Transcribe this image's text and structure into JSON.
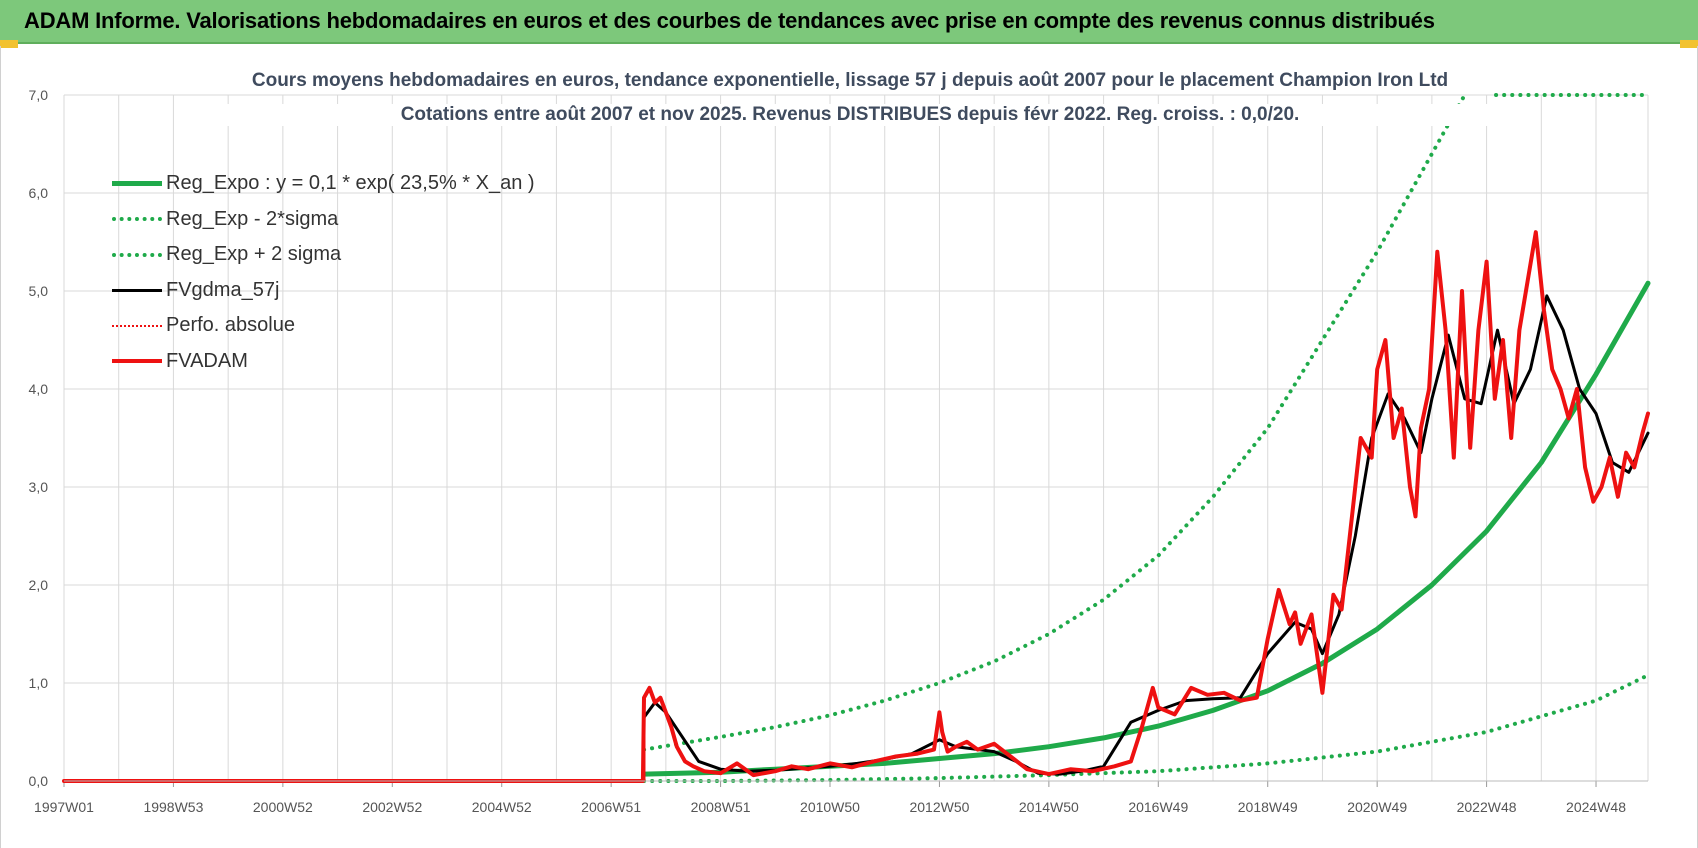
{
  "header": {
    "title": "ADAM Informe. Valorisations hebdomadaires en euros et des courbes de tendances avec prise en compte des revenus connus distribués"
  },
  "colors": {
    "green": "#1faa4a",
    "black": "#000000",
    "red": "#ee1111",
    "grid": "#d9d9d9"
  },
  "chart_data": {
    "type": "line",
    "title_line1": "Cours moyens hebdomadaires en euros, tendance exponentielle, lissage 57 j depuis août 2007 pour le placement Champion Iron Ltd",
    "title_line2": "Cotations entre août 2007 et nov 2025. Revenus DISTRIBUES depuis févr 2022. Reg. croiss. : 0,0/20.",
    "x_range": [
      1997.0,
      2025.95
    ],
    "ylim": [
      0,
      7
    ],
    "y_ticks": [
      "0,0",
      "1,0",
      "2,0",
      "3,0",
      "4,0",
      "5,0",
      "6,0",
      "7,0"
    ],
    "x_ticks": [
      {
        "label": "1997W01",
        "year": 1997.0
      },
      {
        "label": "1998W53",
        "year": 1999.0
      },
      {
        "label": "2000W52",
        "year": 2001.0
      },
      {
        "label": "2002W52",
        "year": 2003.0
      },
      {
        "label": "2004W52",
        "year": 2005.0
      },
      {
        "label": "2006W51",
        "year": 2007.0
      },
      {
        "label": "2008W51",
        "year": 2009.0
      },
      {
        "label": "2010W50",
        "year": 2011.0
      },
      {
        "label": "2012W50",
        "year": 2013.0
      },
      {
        "label": "2014W50",
        "year": 2015.0
      },
      {
        "label": "2016W49",
        "year": 2017.0
      },
      {
        "label": "2018W49",
        "year": 2019.0
      },
      {
        "label": "2020W49",
        "year": 2021.0
      },
      {
        "label": "2022W48",
        "year": 2023.0
      },
      {
        "label": "2024W48",
        "year": 2025.0
      }
    ],
    "legend": [
      {
        "label": "Reg_Expo : y = 0,1 * exp( 23,5% *  X_an )",
        "color": "#1faa4a",
        "style": "solid",
        "width": 5
      },
      {
        "label": "Reg_Exp - 2*sigma",
        "color": "#1faa4a",
        "style": "dotted",
        "width": 4
      },
      {
        "label": "Reg_Exp + 2 sigma",
        "color": "#1faa4a",
        "style": "dotted",
        "width": 4
      },
      {
        "label": "FVgdma_57j",
        "color": "#000000",
        "style": "solid",
        "width": 3
      },
      {
        "label": "Perfo. absolue",
        "color": "#ee1111",
        "style": "dotted",
        "width": 2
      },
      {
        "label": "FVADAM",
        "color": "#ee1111",
        "style": "solid",
        "width": 4
      }
    ],
    "series": [
      {
        "name": "Reg_Expo",
        "x": [
          2007.6,
          2009,
          2010,
          2011,
          2012,
          2013,
          2014,
          2015,
          2016,
          2017,
          2018,
          2019,
          2020,
          2021,
          2022,
          2023,
          2024,
          2025,
          2025.95
        ],
        "y": [
          0.07,
          0.09,
          0.12,
          0.15,
          0.18,
          0.23,
          0.28,
          0.35,
          0.44,
          0.56,
          0.72,
          0.92,
          1.2,
          1.55,
          2.0,
          2.55,
          3.25,
          4.15,
          5.08
        ]
      },
      {
        "name": "Reg_Exp - 2*sigma",
        "x": [
          2007.6,
          2009,
          2011,
          2013,
          2015,
          2017,
          2019,
          2021,
          2023,
          2025,
          2025.95
        ],
        "y": [
          0.0,
          0.0,
          0.01,
          0.03,
          0.06,
          0.1,
          0.18,
          0.3,
          0.5,
          0.82,
          1.08
        ]
      },
      {
        "name": "Reg_Exp + 2 sigma",
        "x": [
          2007.6,
          2009,
          2010,
          2011,
          2012,
          2013,
          2014,
          2015,
          2016,
          2017,
          2018,
          2019,
          2020,
          2021,
          2022,
          2022.6
        ],
        "y": [
          0.32,
          0.45,
          0.55,
          0.67,
          0.82,
          1.0,
          1.22,
          1.5,
          1.85,
          2.3,
          2.9,
          3.6,
          4.5,
          5.4,
          6.4,
          7.0
        ]
      },
      {
        "name": "FVgdma_57j",
        "x": [
          1997.0,
          2007.58,
          2007.6,
          2007.8,
          2008.0,
          2008.3,
          2008.6,
          2009.0,
          2009.5,
          2010.0,
          2010.5,
          2011.0,
          2011.5,
          2012.0,
          2012.5,
          2013.0,
          2013.3,
          2013.6,
          2014.0,
          2014.4,
          2014.8,
          2015.2,
          2015.6,
          2016.0,
          2016.5,
          2017.0,
          2017.5,
          2018.0,
          2018.5,
          2019.0,
          2019.5,
          2019.8,
          2020.0,
          2020.3,
          2020.6,
          2020.9,
          2021.2,
          2021.5,
          2021.8,
          2022.0,
          2022.3,
          2022.6,
          2022.9,
          2023.2,
          2023.5,
          2023.8,
          2024.1,
          2024.4,
          2024.7,
          2025.0,
          2025.3,
          2025.6,
          2025.95
        ],
        "y": [
          0.0,
          0.0,
          0.65,
          0.8,
          0.7,
          0.45,
          0.2,
          0.12,
          0.1,
          0.11,
          0.13,
          0.15,
          0.18,
          0.22,
          0.28,
          0.42,
          0.35,
          0.33,
          0.3,
          0.2,
          0.08,
          0.07,
          0.1,
          0.15,
          0.6,
          0.72,
          0.82,
          0.84,
          0.85,
          1.3,
          1.62,
          1.55,
          1.3,
          1.7,
          2.5,
          3.5,
          3.95,
          3.7,
          3.35,
          3.9,
          4.55,
          3.9,
          3.85,
          4.6,
          3.85,
          4.2,
          4.95,
          4.6,
          4.0,
          3.75,
          3.25,
          3.15,
          3.55
        ]
      },
      {
        "name": "FVADAM",
        "x": [
          1997.0,
          2007.58,
          2007.6,
          2007.7,
          2007.8,
          2007.9,
          2008.0,
          2008.1,
          2008.2,
          2008.35,
          2008.5,
          2008.7,
          2009.0,
          2009.3,
          2009.6,
          2010.0,
          2010.3,
          2010.6,
          2011.0,
          2011.4,
          2011.8,
          2012.2,
          2012.6,
          2012.9,
          2013.0,
          2013.05,
          2013.15,
          2013.3,
          2013.5,
          2013.7,
          2014.0,
          2014.3,
          2014.6,
          2015.0,
          2015.4,
          2015.8,
          2016.2,
          2016.5,
          2016.7,
          2016.9,
          2017.0,
          2017.3,
          2017.6,
          2017.9,
          2018.2,
          2018.5,
          2018.8,
          2019.0,
          2019.2,
          2019.4,
          2019.5,
          2019.6,
          2019.8,
          2020.0,
          2020.2,
          2020.35,
          2020.5,
          2020.7,
          2020.9,
          2021.0,
          2021.15,
          2021.3,
          2021.45,
          2021.6,
          2021.7,
          2021.8,
          2021.95,
          2022.1,
          2022.25,
          2022.4,
          2022.55,
          2022.7,
          2022.85,
          2023.0,
          2023.15,
          2023.3,
          2023.45,
          2023.6,
          2023.75,
          2023.9,
          2024.05,
          2024.2,
          2024.35,
          2024.5,
          2024.65,
          2024.8,
          2024.95,
          2025.1,
          2025.25,
          2025.4,
          2025.55,
          2025.7,
          2025.85,
          2025.95
        ],
        "y": [
          0.0,
          0.0,
          0.85,
          0.95,
          0.8,
          0.85,
          0.7,
          0.55,
          0.35,
          0.2,
          0.15,
          0.1,
          0.08,
          0.18,
          0.06,
          0.1,
          0.15,
          0.12,
          0.18,
          0.14,
          0.2,
          0.25,
          0.28,
          0.32,
          0.7,
          0.5,
          0.3,
          0.35,
          0.4,
          0.32,
          0.38,
          0.25,
          0.12,
          0.07,
          0.12,
          0.1,
          0.15,
          0.2,
          0.55,
          0.95,
          0.75,
          0.68,
          0.95,
          0.88,
          0.9,
          0.82,
          0.85,
          1.45,
          1.95,
          1.6,
          1.72,
          1.4,
          1.7,
          0.9,
          1.9,
          1.75,
          2.5,
          3.5,
          3.3,
          4.2,
          4.5,
          3.5,
          3.8,
          3.0,
          2.7,
          3.6,
          4.0,
          5.4,
          4.6,
          3.3,
          5.0,
          3.4,
          4.6,
          5.3,
          3.9,
          4.5,
          3.5,
          4.6,
          5.1,
          5.6,
          4.8,
          4.2,
          4.0,
          3.7,
          4.0,
          3.2,
          2.85,
          3.0,
          3.3,
          2.9,
          3.35,
          3.2,
          3.55,
          3.75
        ]
      }
    ]
  }
}
